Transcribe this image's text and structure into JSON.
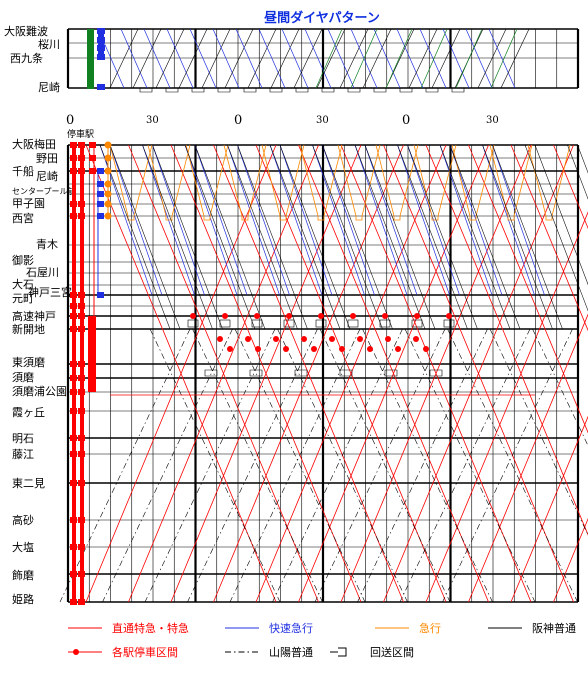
{
  "title": "昼間ダイヤパターン",
  "top_panel": {
    "stations": [
      "大阪難波",
      "桜川",
      "西九条",
      "尼崎"
    ]
  },
  "time_ticks": [
    "0",
    "30",
    "0",
    "30",
    "0",
    "30"
  ],
  "main_panel": {
    "stop_label": "停車駅",
    "stations": [
      {
        "name": "大阪梅田"
      },
      {
        "name": "野田"
      },
      {
        "name": "尼崎"
      },
      {
        "name": "千船"
      },
      {
        "name": "センタープール前"
      },
      {
        "name": "甲子園"
      },
      {
        "name": "西宮"
      },
      {
        "name": "青木"
      },
      {
        "name": "御影"
      },
      {
        "name": "石屋川"
      },
      {
        "name": "大石"
      },
      {
        "name": "神戸三宮"
      },
      {
        "name": "元町"
      },
      {
        "name": "高速神戸"
      },
      {
        "name": "新開地"
      },
      {
        "name": "東須磨"
      },
      {
        "name": "須磨"
      },
      {
        "name": "須磨浦公園"
      },
      {
        "name": "霞ヶ丘"
      },
      {
        "name": "明石"
      },
      {
        "name": "藤江"
      },
      {
        "name": "東二見"
      },
      {
        "name": "高砂"
      },
      {
        "name": "大塩"
      },
      {
        "name": "飾磨"
      },
      {
        "name": "姫路"
      }
    ]
  },
  "legend": [
    {
      "label": "直通特急・特急",
      "color": "#ff0000",
      "style": "solid"
    },
    {
      "label": "快速急行",
      "color": "#2030e0",
      "style": "solid"
    },
    {
      "label": "急行",
      "color": "#ff8800",
      "style": "solid"
    },
    {
      "label": "阪神普通",
      "color": "#000000",
      "style": "solid"
    },
    {
      "label": "各駅停車区間",
      "color": "#ff0000",
      "style": "dots"
    },
    {
      "label": "山陽普通",
      "color": "#000000",
      "style": "dashdot"
    },
    {
      "label": "回送区間",
      "color": "#000000",
      "style": "deadhead"
    }
  ],
  "colors": {
    "limited_express": "#ff0000",
    "rapid_express": "#2030e0",
    "express": "#ff8800",
    "local": "#000000",
    "namba_green": "#108020",
    "title_blue": "#1030e0"
  }
}
